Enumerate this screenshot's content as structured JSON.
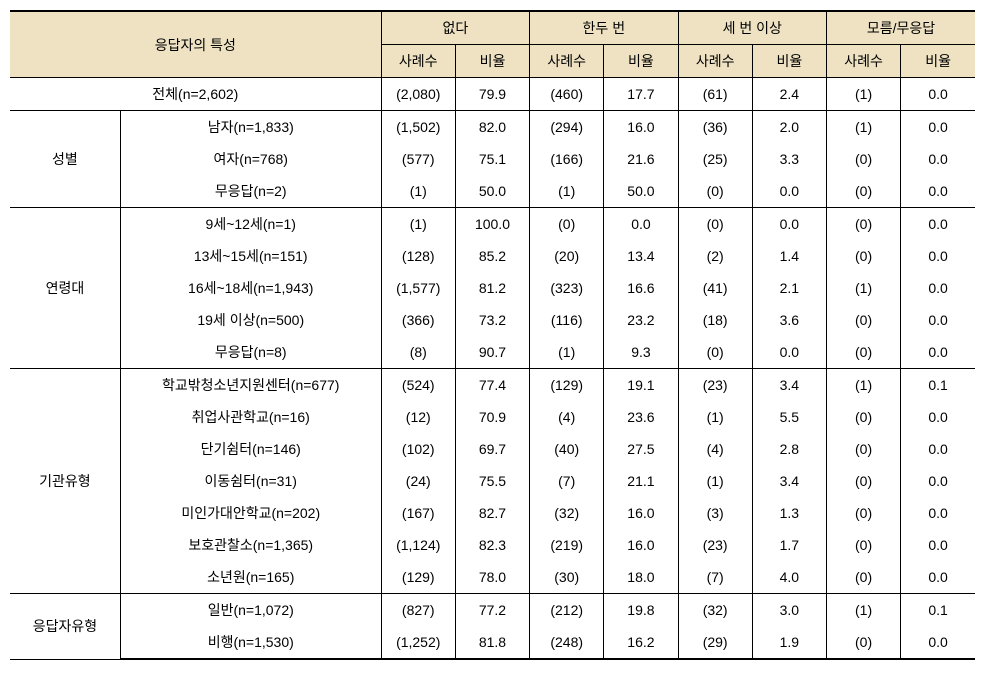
{
  "headers": {
    "main": "응답자의 특성",
    "groups": [
      "없다",
      "한두 번",
      "세 번 이상",
      "모름/무응답"
    ],
    "subs": [
      "사례수",
      "비율"
    ]
  },
  "total": {
    "label": "전체(n=2,602)",
    "cells": [
      "(2,080)",
      "79.9",
      "(460)",
      "17.7",
      "(61)",
      "2.4",
      "(1)",
      "0.0"
    ]
  },
  "sections": [
    {
      "name": "성별",
      "rows": [
        {
          "label": "남자(n=1,833)",
          "cells": [
            "(1,502)",
            "82.0",
            "(294)",
            "16.0",
            "(36)",
            "2.0",
            "(1)",
            "0.0"
          ]
        },
        {
          "label": "여자(n=768)",
          "cells": [
            "(577)",
            "75.1",
            "(166)",
            "21.6",
            "(25)",
            "3.3",
            "(0)",
            "0.0"
          ]
        },
        {
          "label": "무응답(n=2)",
          "cells": [
            "(1)",
            "50.0",
            "(1)",
            "50.0",
            "(0)",
            "0.0",
            "(0)",
            "0.0"
          ]
        }
      ]
    },
    {
      "name": "연령대",
      "rows": [
        {
          "label": "9세~12세(n=1)",
          "cells": [
            "(1)",
            "100.0",
            "(0)",
            "0.0",
            "(0)",
            "0.0",
            "(0)",
            "0.0"
          ]
        },
        {
          "label": "13세~15세(n=151)",
          "cells": [
            "(128)",
            "85.2",
            "(20)",
            "13.4",
            "(2)",
            "1.4",
            "(0)",
            "0.0"
          ]
        },
        {
          "label": "16세~18세(n=1,943)",
          "cells": [
            "(1,577)",
            "81.2",
            "(323)",
            "16.6",
            "(41)",
            "2.1",
            "(1)",
            "0.0"
          ]
        },
        {
          "label": "19세 이상(n=500)",
          "cells": [
            "(366)",
            "73.2",
            "(116)",
            "23.2",
            "(18)",
            "3.6",
            "(0)",
            "0.0"
          ]
        },
        {
          "label": "무응답(n=8)",
          "cells": [
            "(8)",
            "90.7",
            "(1)",
            "9.3",
            "(0)",
            "0.0",
            "(0)",
            "0.0"
          ]
        }
      ]
    },
    {
      "name": "기관유형",
      "rows": [
        {
          "label": "학교밖청소년지원센터(n=677)",
          "cells": [
            "(524)",
            "77.4",
            "(129)",
            "19.1",
            "(23)",
            "3.4",
            "(1)",
            "0.1"
          ]
        },
        {
          "label": "취업사관학교(n=16)",
          "cells": [
            "(12)",
            "70.9",
            "(4)",
            "23.6",
            "(1)",
            "5.5",
            "(0)",
            "0.0"
          ]
        },
        {
          "label": "단기쉼터(n=146)",
          "cells": [
            "(102)",
            "69.7",
            "(40)",
            "27.5",
            "(4)",
            "2.8",
            "(0)",
            "0.0"
          ]
        },
        {
          "label": "이동쉼터(n=31)",
          "cells": [
            "(24)",
            "75.5",
            "(7)",
            "21.1",
            "(1)",
            "3.4",
            "(0)",
            "0.0"
          ]
        },
        {
          "label": "미인가대안학교(n=202)",
          "cells": [
            "(167)",
            "82.7",
            "(32)",
            "16.0",
            "(3)",
            "1.3",
            "(0)",
            "0.0"
          ]
        },
        {
          "label": "보호관찰소(n=1,365)",
          "cells": [
            "(1,124)",
            "82.3",
            "(219)",
            "16.0",
            "(23)",
            "1.7",
            "(0)",
            "0.0"
          ]
        },
        {
          "label": "소년원(n=165)",
          "cells": [
            "(129)",
            "78.0",
            "(30)",
            "18.0",
            "(7)",
            "4.0",
            "(0)",
            "0.0"
          ]
        }
      ]
    },
    {
      "name": "응답자유형",
      "rows": [
        {
          "label": "일반(n=1,072)",
          "cells": [
            "(827)",
            "77.2",
            "(212)",
            "19.8",
            "(32)",
            "3.0",
            "(1)",
            "0.1"
          ]
        },
        {
          "label": "비행(n=1,530)",
          "cells": [
            "(1,252)",
            "81.8",
            "(248)",
            "16.2",
            "(29)",
            "1.9",
            "(0)",
            "0.0"
          ]
        }
      ]
    }
  ]
}
